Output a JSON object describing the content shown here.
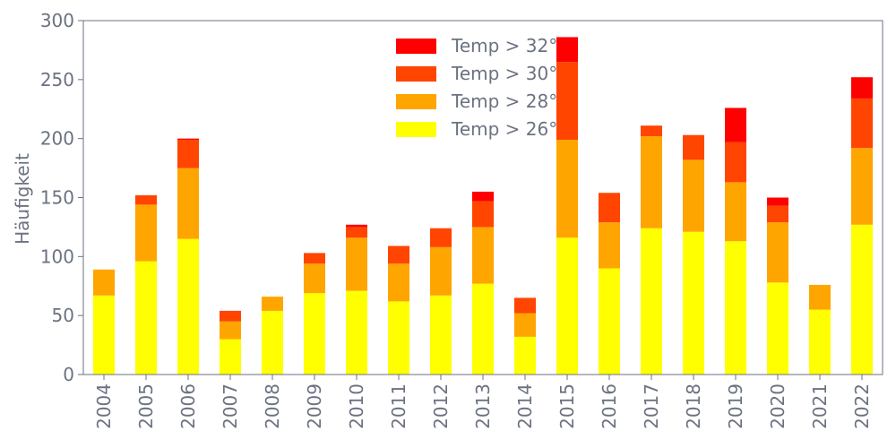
{
  "chart_data": {
    "type": "bar",
    "stacked": true,
    "title": "",
    "xlabel": "",
    "ylabel": "Häufigkeit",
    "ylim": [
      0,
      300
    ],
    "yticks": [
      0,
      50,
      100,
      150,
      200,
      250,
      300
    ],
    "grid": false,
    "legend_position": "top-center",
    "categories": [
      "2004",
      "2005",
      "2006",
      "2007",
      "2008",
      "2009",
      "2010",
      "2011",
      "2012",
      "2013",
      "2014",
      "2015",
      "2016",
      "2017",
      "2018",
      "2019",
      "2020",
      "2021",
      "2022"
    ],
    "series": [
      {
        "name": "Temp > 26°",
        "color": "#ffff00",
        "values": [
          67,
          96,
          115,
          30,
          54,
          69,
          71,
          62,
          67,
          77,
          32,
          116,
          90,
          124,
          121,
          113,
          78,
          55,
          127
        ]
      },
      {
        "name": "Temp > 28°",
        "color": "#ffa500",
        "values": [
          22,
          48,
          60,
          15,
          12,
          25,
          45,
          32,
          41,
          48,
          20,
          83,
          39,
          78,
          61,
          50,
          51,
          21,
          65
        ]
      },
      {
        "name": "Temp > 30°",
        "color": "#ff4500",
        "values": [
          0,
          8,
          24,
          9,
          0,
          9,
          9,
          15,
          16,
          22,
          13,
          66,
          25,
          9,
          21,
          34,
          14,
          0,
          42
        ]
      },
      {
        "name": "Temp > 32°",
        "color": "#ff0000",
        "values": [
          0,
          0,
          1,
          0,
          0,
          0,
          2,
          0,
          0,
          8,
          0,
          21,
          0,
          0,
          0,
          29,
          7,
          0,
          18
        ]
      }
    ]
  }
}
